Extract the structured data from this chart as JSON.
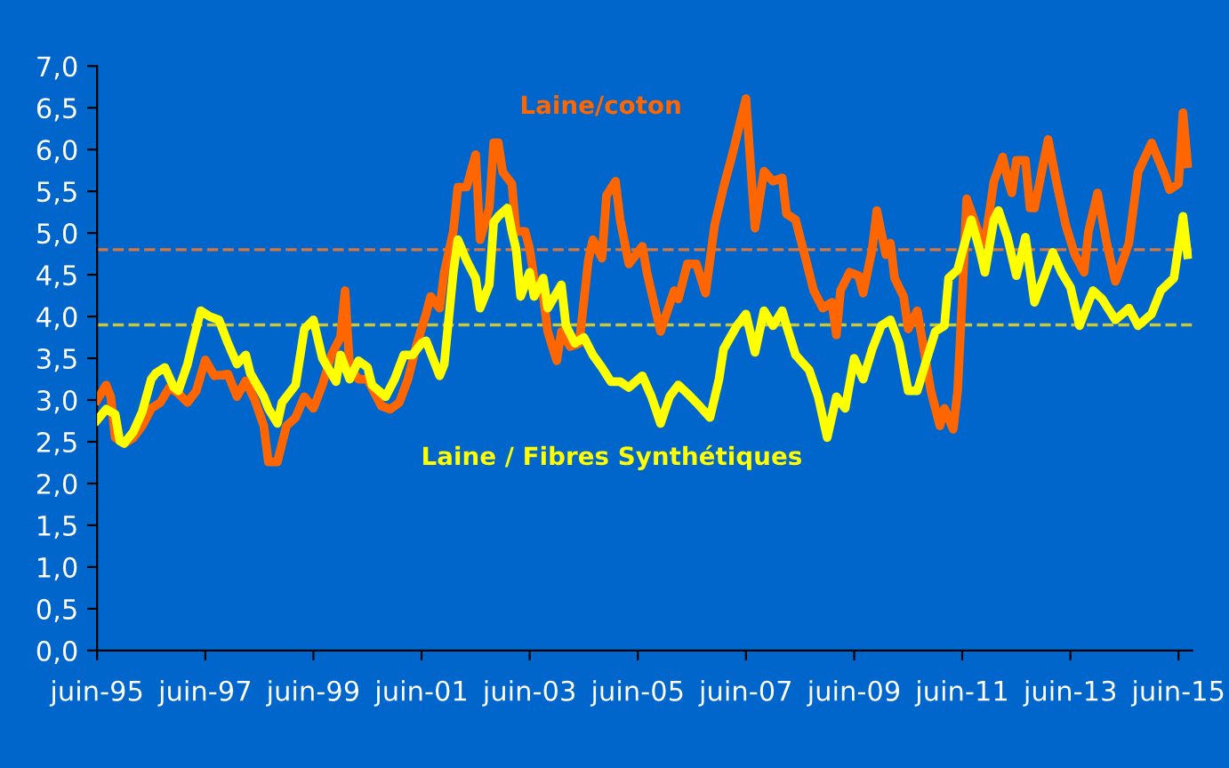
{
  "chart_data": {
    "type": "line",
    "legend": false,
    "grid": false,
    "line_style": "solid",
    "marker": "none",
    "xlim": [
      "1995-06",
      "2015-09"
    ],
    "ylim": [
      0,
      7
    ],
    "xticks": [
      {
        "value": "1995-06",
        "label": "juin-95"
      },
      {
        "value": "1997-06",
        "label": "juin-97"
      },
      {
        "value": "1999-06",
        "label": "juin-99"
      },
      {
        "value": "2001-06",
        "label": "juin-01"
      },
      {
        "value": "2003-06",
        "label": "juin-03"
      },
      {
        "value": "2005-06",
        "label": "juin-05"
      },
      {
        "value": "2007-06",
        "label": "juin-07"
      },
      {
        "value": "2009-06",
        "label": "juin-09"
      },
      {
        "value": "2011-06",
        "label": "juin-11"
      },
      {
        "value": "2013-06",
        "label": "juin-13"
      },
      {
        "value": "2015-06",
        "label": "juin-15"
      }
    ],
    "yticks": [
      {
        "value": 0,
        "label": "0,0"
      },
      {
        "value": 0.5,
        "label": "0,5"
      },
      {
        "value": 1,
        "label": "1,0"
      },
      {
        "value": 1.5,
        "label": "1,5"
      },
      {
        "value": 2,
        "label": "2,0"
      },
      {
        "value": 2.5,
        "label": "2,5"
      },
      {
        "value": 3,
        "label": "3,0"
      },
      {
        "value": 3.5,
        "label": "3,5"
      },
      {
        "value": 4,
        "label": "4,0"
      },
      {
        "value": 4.5,
        "label": "4,5"
      },
      {
        "value": 5,
        "label": "5,0"
      },
      {
        "value": 5.5,
        "label": "5,5"
      },
      {
        "value": 6,
        "label": "6,0"
      },
      {
        "value": 6.5,
        "label": "6,5"
      },
      {
        "value": 7,
        "label": "7,0"
      }
    ],
    "ref_lines": [
      {
        "axis": "y",
        "value": 4.8,
        "color": "#d9773a",
        "line_style": "dashed"
      },
      {
        "axis": "y",
        "value": 3.9,
        "color": "#c8c83a",
        "line_style": "dashed"
      }
    ],
    "series": [
      {
        "name": "Laine/coton",
        "color": "#ff6600",
        "x": [
          "1995-06",
          "1995-08",
          "1995-09",
          "1995-10",
          "1995-12",
          "1996-02",
          "1996-04",
          "1996-06",
          "1996-08",
          "1996-10",
          "1996-12",
          "1997-02",
          "1997-04",
          "1997-06",
          "1997-08",
          "1997-11",
          "1998-01",
          "1998-03",
          "1998-05",
          "1998-07",
          "1998-08",
          "1998-10",
          "1998-12",
          "1999-02",
          "1999-04",
          "1999-06",
          "1999-08",
          "1999-10",
          "1999-12",
          "2000-01",
          "2000-02",
          "2000-04",
          "2000-06",
          "2000-09",
          "2000-11",
          "2001-01",
          "2001-03",
          "2001-05",
          "2001-07",
          "2001-08",
          "2001-10",
          "2001-11",
          "2002-01",
          "2002-02",
          "2002-04",
          "2002-06",
          "2002-07",
          "2002-09",
          "2002-10",
          "2002-11",
          "2002-12",
          "2003-02",
          "2003-03",
          "2003-05",
          "2003-06",
          "2003-07",
          "2003-09",
          "2003-10",
          "2003-12",
          "2004-01",
          "2004-03",
          "2004-05",
          "2004-07",
          "2004-08",
          "2004-10",
          "2004-11",
          "2005-01",
          "2005-02",
          "2005-04",
          "2005-07",
          "2005-08",
          "2005-11",
          "2006-02",
          "2006-03",
          "2006-05",
          "2006-07",
          "2006-09",
          "2006-11",
          "2007-01",
          "2007-03",
          "2007-06",
          "2007-08",
          "2007-10",
          "2007-12",
          "2008-02",
          "2008-03",
          "2008-05",
          "2008-07",
          "2008-09",
          "2008-11",
          "2009-01",
          "2009-02",
          "2009-03",
          "2009-05",
          "2009-07",
          "2009-08",
          "2009-10",
          "2009-11",
          "2010-01",
          "2010-02",
          "2010-03",
          "2010-05",
          "2010-06",
          "2010-08",
          "2010-09",
          "2010-11",
          "2011-01",
          "2011-02",
          "2011-04",
          "2011-05",
          "2011-06",
          "2011-07",
          "2011-10",
          "2011-11",
          "2012-01",
          "2012-03",
          "2012-04",
          "2012-05",
          "2012-06",
          "2012-08",
          "2012-09",
          "2012-10",
          "2013-01",
          "2013-03",
          "2013-05",
          "2013-07",
          "2013-09",
          "2013-10",
          "2013-12",
          "2014-02",
          "2014-04",
          "2014-07",
          "2014-09",
          "2014-12",
          "2015-03",
          "2015-04",
          "2015-06",
          "2015-07",
          "2015-08"
        ],
        "values": [
          3.0,
          3.18,
          3.04,
          2.55,
          2.48,
          2.55,
          2.69,
          2.9,
          2.97,
          3.15,
          3.08,
          2.97,
          3.11,
          3.48,
          3.29,
          3.31,
          3.04,
          3.23,
          3.0,
          2.69,
          2.26,
          2.26,
          2.69,
          2.79,
          3.04,
          2.9,
          3.18,
          3.54,
          3.75,
          4.31,
          3.39,
          3.25,
          3.25,
          2.93,
          2.89,
          2.97,
          3.25,
          3.68,
          4.03,
          4.24,
          4.1,
          4.53,
          5.02,
          5.55,
          5.55,
          5.94,
          4.92,
          5.3,
          6.08,
          6.08,
          5.73,
          5.59,
          5.02,
          5.02,
          4.81,
          4.46,
          4.24,
          3.82,
          3.47,
          3.82,
          3.64,
          3.68,
          4.67,
          4.92,
          4.7,
          5.45,
          5.62,
          5.16,
          4.63,
          4.84,
          4.53,
          3.82,
          4.31,
          4.21,
          4.63,
          4.63,
          4.28,
          5.09,
          5.55,
          5.94,
          6.61,
          5.06,
          5.74,
          5.62,
          5.66,
          5.23,
          5.16,
          4.74,
          4.31,
          4.1,
          4.17,
          3.78,
          4.31,
          4.53,
          4.49,
          4.28,
          4.81,
          5.27,
          4.74,
          4.88,
          4.46,
          4.24,
          3.85,
          4.07,
          3.75,
          3.11,
          2.69,
          2.9,
          2.65,
          3.11,
          4.24,
          5.41,
          4.95,
          4.88,
          5.62,
          5.91,
          5.66,
          5.48,
          5.87,
          5.87,
          5.3,
          5.3,
          6.12,
          5.59,
          5.09,
          4.74,
          4.53,
          5.02,
          5.48,
          4.88,
          4.42,
          4.88,
          5.73,
          6.08,
          5.69,
          5.52,
          5.59,
          6.44,
          5.83
        ]
      },
      {
        "name": "Laine / Fibres Synthétiques",
        "color": "#ffff00",
        "x": [
          "1995-06",
          "1995-08",
          "1995-10",
          "1995-11",
          "1995-12",
          "1996-02",
          "1996-04",
          "1996-06",
          "1996-07",
          "1996-09",
          "1996-11",
          "1996-12",
          "1997-02",
          "1997-03",
          "1997-05",
          "1997-07",
          "1997-09",
          "1997-11",
          "1998-01",
          "1998-03",
          "1998-04",
          "1998-07",
          "1998-08",
          "1998-10",
          "1998-11",
          "1999-01",
          "1999-02",
          "1999-04",
          "1999-06",
          "1999-08",
          "1999-11",
          "1999-12",
          "2000-02",
          "2000-04",
          "2000-06",
          "2000-07",
          "2000-10",
          "2000-12",
          "2001-02",
          "2001-04",
          "2001-06",
          "2001-07",
          "2001-10",
          "2001-11",
          "2002-01",
          "2002-02",
          "2002-04",
          "2002-06",
          "2002-07",
          "2002-09",
          "2002-10",
          "2002-11",
          "2003-01",
          "2003-02",
          "2003-03",
          "2003-04",
          "2003-06",
          "2003-07",
          "2003-09",
          "2003-10",
          "2004-01",
          "2004-02",
          "2004-04",
          "2004-06",
          "2004-08",
          "2004-10",
          "2004-12",
          "2005-02",
          "2005-04",
          "2005-07",
          "2005-09",
          "2005-11",
          "2006-01",
          "2006-03",
          "2006-05",
          "2006-07",
          "2006-10",
          "2006-12",
          "2007-01",
          "2007-04",
          "2007-06",
          "2007-08",
          "2007-10",
          "2007-12",
          "2008-02",
          "2008-03",
          "2008-05",
          "2008-08",
          "2008-10",
          "2008-12",
          "2009-02",
          "2009-04",
          "2009-06",
          "2009-08",
          "2009-10",
          "2009-12",
          "2010-02",
          "2010-04",
          "2010-06",
          "2010-08",
          "2010-10",
          "2010-12",
          "2011-02",
          "2011-03",
          "2011-05",
          "2011-06",
          "2011-08",
          "2011-10",
          "2011-11",
          "2012-01",
          "2012-02",
          "2012-04",
          "2012-06",
          "2012-08",
          "2012-10",
          "2012-12",
          "2013-02",
          "2013-04",
          "2013-06",
          "2013-08",
          "2013-10",
          "2013-11",
          "2014-01",
          "2014-04",
          "2014-07",
          "2014-09",
          "2014-12",
          "2015-02",
          "2015-05",
          "2015-07",
          "2015-08"
        ],
        "values": [
          2.76,
          2.89,
          2.83,
          2.51,
          2.48,
          2.62,
          2.86,
          3.25,
          3.32,
          3.39,
          3.15,
          3.11,
          3.43,
          3.64,
          4.07,
          4.0,
          3.96,
          3.68,
          3.43,
          3.54,
          3.32,
          3.04,
          2.9,
          2.72,
          2.97,
          3.11,
          3.18,
          3.85,
          3.96,
          3.5,
          3.22,
          3.54,
          3.25,
          3.47,
          3.39,
          3.18,
          3.04,
          3.25,
          3.54,
          3.54,
          3.68,
          3.71,
          3.29,
          3.43,
          4.53,
          4.92,
          4.67,
          4.46,
          4.1,
          4.38,
          5.13,
          5.2,
          5.3,
          5.02,
          4.81,
          4.24,
          4.53,
          4.24,
          4.46,
          4.1,
          4.38,
          3.89,
          3.68,
          3.75,
          3.54,
          3.39,
          3.22,
          3.22,
          3.15,
          3.29,
          3.04,
          2.72,
          3.04,
          3.18,
          3.08,
          2.97,
          2.79,
          3.25,
          3.61,
          3.89,
          4.03,
          3.57,
          4.07,
          3.89,
          4.07,
          3.89,
          3.54,
          3.36,
          3.04,
          2.55,
          3.04,
          2.9,
          3.5,
          3.25,
          3.61,
          3.89,
          3.96,
          3.68,
          3.11,
          3.11,
          3.47,
          3.82,
          3.89,
          4.46,
          4.56,
          4.77,
          5.16,
          4.77,
          4.53,
          5.16,
          5.27,
          4.95,
          4.49,
          4.95,
          4.17,
          4.46,
          4.77,
          4.53,
          4.35,
          3.89,
          4.17,
          4.31,
          4.21,
          3.96,
          4.1,
          3.89,
          4.03,
          4.31,
          4.46,
          5.2,
          4.74
        ]
      }
    ]
  }
}
